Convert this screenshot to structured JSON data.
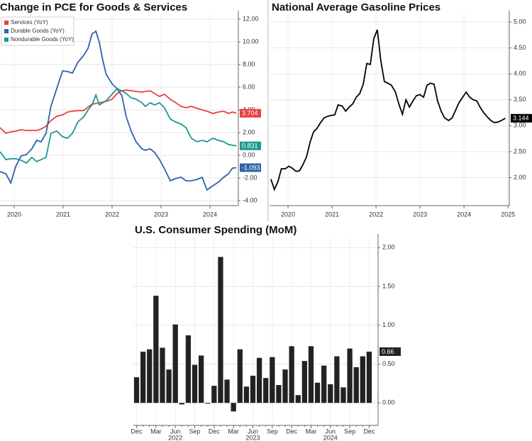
{
  "chart_data": [
    {
      "type": "line",
      "title": "Change in PCE for Goods & Services",
      "x": [
        2019.71,
        2019.83,
        2019.93,
        2020.03,
        2020.14,
        2020.25,
        2020.36,
        2020.46,
        2020.55,
        2020.65,
        2020.75,
        2020.87,
        2020.99,
        2021.09,
        2021.19,
        2021.3,
        2021.42,
        2021.51,
        2021.59,
        2021.67,
        2021.74,
        2021.81,
        2021.88,
        2022.0,
        2022.1,
        2022.2,
        2022.29,
        2022.39,
        2022.49,
        2022.61,
        2022.68,
        2022.78,
        2022.87,
        2022.97,
        2023.07,
        2023.19,
        2023.3,
        2023.41,
        2023.51,
        2023.62,
        2023.74,
        2023.84,
        2023.94,
        2024.06,
        2024.17,
        2024.28,
        2024.38,
        2024.46,
        2024.54
      ],
      "series": [
        {
          "name": "Services (YoY)",
          "color": "#e8403f",
          "values": [
            2.44,
            1.94,
            2.06,
            2.13,
            2.25,
            2.19,
            2.19,
            2.19,
            2.31,
            2.56,
            3.06,
            3.44,
            3.56,
            3.81,
            3.88,
            3.94,
            3.94,
            4.25,
            4.5,
            4.56,
            4.63,
            4.69,
            4.75,
            4.94,
            5.44,
            5.69,
            5.75,
            5.69,
            5.63,
            5.56,
            5.63,
            5.69,
            5.44,
            5.19,
            5.38,
            4.94,
            4.63,
            4.31,
            4.19,
            4.31,
            4.13,
            4.0,
            3.88,
            3.69,
            3.81,
            3.88,
            3.69,
            3.81,
            3.704
          ]
        },
        {
          "name": "Durable Goods (YoY)",
          "color": "#2f62a8",
          "values": [
            -1.44,
            -1.63,
            -2.44,
            -1.0,
            -0.06,
            0.06,
            0.56,
            1.31,
            1.19,
            1.94,
            4.31,
            5.88,
            7.44,
            7.38,
            7.25,
            8.19,
            8.81,
            9.44,
            10.69,
            10.94,
            9.94,
            8.38,
            7.13,
            6.31,
            5.88,
            5.25,
            3.38,
            2.13,
            1.19,
            0.56,
            0.44,
            0.56,
            0.25,
            -0.38,
            -1.19,
            -2.25,
            -2.06,
            -1.94,
            -2.25,
            -2.25,
            -2.13,
            -1.94,
            -3.06,
            -2.69,
            -2.38,
            -1.94,
            -1.63,
            -1.13,
            -1.093
          ]
        },
        {
          "name": "Nondurable Goods (YoY)",
          "color": "#1a9993",
          "values": [
            0.31,
            -0.38,
            -0.31,
            -0.31,
            -0.44,
            -0.69,
            -0.19,
            -0.56,
            -0.38,
            -0.19,
            1.94,
            2.13,
            1.63,
            1.5,
            1.94,
            2.94,
            3.38,
            4.0,
            4.44,
            5.31,
            4.44,
            4.63,
            4.81,
            5.38,
            5.88,
            5.69,
            5.44,
            5.06,
            4.94,
            4.63,
            4.31,
            4.63,
            4.44,
            4.63,
            4.19,
            3.19,
            2.94,
            2.75,
            2.44,
            1.5,
            1.19,
            1.31,
            1.19,
            1.5,
            1.31,
            1.19,
            0.94,
            0.88,
            0.831
          ]
        }
      ],
      "xlim": [
        2019.71,
        2024.58
      ],
      "xticks": [
        2020,
        2021,
        2022,
        2023,
        2024
      ],
      "ylim": [
        -4.44,
        12.44
      ],
      "yticks": [
        {
          "value": -4,
          "label": "-4.00"
        },
        {
          "value": -2,
          "label": "-2.00"
        },
        {
          "value": 0,
          "label": "0.00"
        },
        {
          "value": 2,
          "label": "2.00"
        },
        {
          "value": 4,
          "label": "4.00"
        },
        {
          "value": 6,
          "label": "6.00"
        },
        {
          "value": 8,
          "label": "8.00"
        },
        {
          "value": 10,
          "label": "10.00"
        },
        {
          "value": 12,
          "label": "12.00"
        }
      ],
      "grid": true,
      "legend": "upper left",
      "end_labels": true
    },
    {
      "type": "line",
      "title": "National Average Gasoline Prices",
      "x": [
        2019.61,
        2019.69,
        2019.77,
        2019.85,
        2019.94,
        2020.02,
        2020.1,
        2020.18,
        2020.26,
        2020.34,
        2020.42,
        2020.5,
        2020.58,
        2020.66,
        2020.74,
        2020.82,
        2020.9,
        2020.98,
        2021.06,
        2021.14,
        2021.23,
        2021.31,
        2021.39,
        2021.47,
        2021.55,
        2021.63,
        2021.71,
        2021.79,
        2021.87,
        2021.95,
        2022.03,
        2022.11,
        2022.19,
        2022.27,
        2022.35,
        2022.44,
        2022.52,
        2022.6,
        2022.68,
        2022.76,
        2022.84,
        2022.92,
        2023.0,
        2023.08,
        2023.16,
        2023.24,
        2023.32,
        2023.4,
        2023.48,
        2023.56,
        2023.65,
        2023.73,
        2023.81,
        2023.89,
        2023.97,
        2024.05,
        2024.13,
        2024.21,
        2024.29,
        2024.37,
        2024.45,
        2024.53,
        2024.61,
        2024.69,
        2024.77,
        2024.85,
        2024.94
      ],
      "values": [
        1.97,
        1.77,
        1.92,
        2.17,
        2.17,
        2.22,
        2.18,
        2.12,
        2.13,
        2.25,
        2.4,
        2.68,
        2.88,
        2.95,
        3.06,
        3.15,
        3.18,
        3.2,
        3.21,
        3.4,
        3.38,
        3.28,
        3.36,
        3.42,
        3.55,
        3.62,
        3.8,
        4.2,
        4.18,
        4.68,
        4.85,
        4.25,
        3.85,
        3.82,
        3.78,
        3.65,
        3.42,
        3.22,
        3.5,
        3.36,
        3.48,
        3.58,
        3.6,
        3.55,
        3.78,
        3.82,
        3.8,
        3.48,
        3.28,
        3.15,
        3.1,
        3.15,
        3.3,
        3.45,
        3.55,
        3.65,
        3.55,
        3.5,
        3.48,
        3.35,
        3.25,
        3.17,
        3.1,
        3.06,
        3.07,
        3.1,
        3.144
      ],
      "color": "#000000",
      "xlim": [
        2019.58,
        2025.03
      ],
      "xticks": [
        2020,
        2021,
        2022,
        2023,
        2024,
        2025
      ],
      "ylim": [
        1.46,
        5.15
      ],
      "yticks": [
        {
          "value": 2,
          "label": "2.00"
        },
        {
          "value": 2.5,
          "label": "2.50"
        },
        {
          "value": 3,
          "label": "3.00"
        },
        {
          "value": 3.5,
          "label": "3.50"
        },
        {
          "value": 4,
          "label": "4.00"
        },
        {
          "value": 4.5,
          "label": "4.50"
        },
        {
          "value": 5,
          "label": "5.00"
        }
      ],
      "grid": true,
      "end_labels": true
    },
    {
      "type": "bar",
      "title": "U.S. Consumer Spending (MoM)",
      "categories": [
        "Dec",
        null,
        null,
        "Mar",
        null,
        null,
        "Jun",
        null,
        null,
        "Sep",
        null,
        null,
        "Dec",
        null,
        null,
        "Mar",
        null,
        null,
        "Jun",
        null,
        null,
        "Sep",
        null,
        null,
        "Dec",
        null,
        null,
        "Mar",
        null,
        null,
        "Jun",
        null,
        null,
        "Sep",
        null,
        null,
        "Dec"
      ],
      "groups": [
        {
          "label": "2022",
          "at": 6
        },
        {
          "label": "2023",
          "at": 18
        },
        {
          "label": "2024",
          "at": 30
        }
      ],
      "values": [
        0.33,
        0.66,
        0.69,
        1.38,
        0.71,
        0.43,
        1.01,
        -0.02,
        0.87,
        0.49,
        0.61,
        -0.01,
        0.22,
        1.88,
        0.3,
        -0.11,
        0.69,
        0.21,
        0.35,
        0.58,
        0.32,
        0.59,
        0.23,
        0.43,
        0.73,
        0.1,
        0.54,
        0.73,
        0.26,
        0.48,
        0.24,
        0.6,
        0.2,
        0.7,
        0.46,
        0.6,
        0.66
      ],
      "color": "#222222",
      "ylim": [
        -0.29,
        2.13
      ],
      "yticks": [
        {
          "value": 0,
          "label": "0.00"
        },
        {
          "value": 0.5,
          "label": "0.50"
        },
        {
          "value": 1,
          "label": "1.00"
        },
        {
          "value": 1.5,
          "label": "1.50"
        },
        {
          "value": 2,
          "label": "2.00"
        }
      ],
      "grid": true,
      "end_labels": true
    }
  ]
}
